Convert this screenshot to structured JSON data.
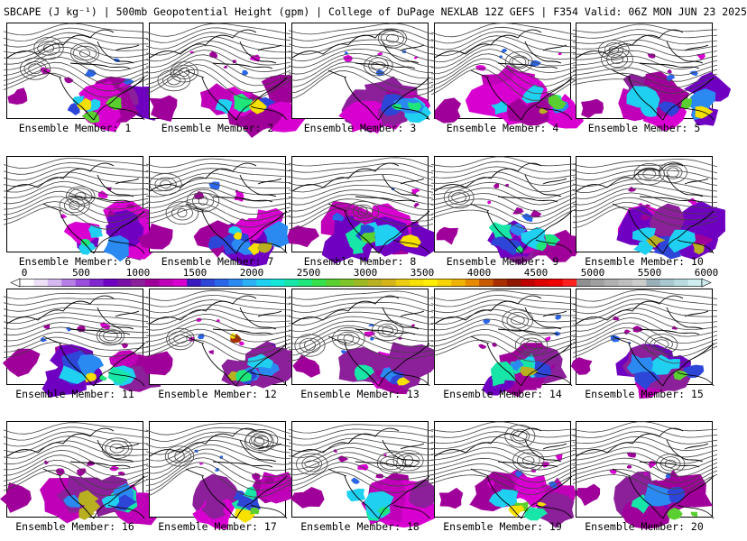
{
  "header": {
    "title": "SBCAPE (J kg⁻¹) | 500mb Geopotential Height (gpm) | College of DuPage NEXLAB 12Z GEFS | F354 Valid: 06Z MON JUN 23 2025"
  },
  "members": [
    {
      "label": "Ensemble Member: 1"
    },
    {
      "label": "Ensemble Member: 2"
    },
    {
      "label": "Ensemble Member: 3"
    },
    {
      "label": "Ensemble Member: 4"
    },
    {
      "label": "Ensemble Member: 5"
    },
    {
      "label": "Ensemble Member: 6"
    },
    {
      "label": "Ensemble Member: 7"
    },
    {
      "label": "Ensemble Member: 8"
    },
    {
      "label": "Ensemble Member: 9"
    },
    {
      "label": "Ensemble Member: 10"
    },
    {
      "label": "Ensemble Member: 11"
    },
    {
      "label": "Ensemble Member: 12"
    },
    {
      "label": "Ensemble Member: 13"
    },
    {
      "label": "Ensemble Member: 14"
    },
    {
      "label": "Ensemble Member: 15"
    },
    {
      "label": "Ensemble Member: 16"
    },
    {
      "label": "Ensemble Member: 17"
    },
    {
      "label": "Ensemble Member: 18"
    },
    {
      "label": "Ensemble Member: 19"
    },
    {
      "label": "Ensemble Member: 20"
    }
  ],
  "colorbar": {
    "ticks": [
      "0",
      "500",
      "1000",
      "1500",
      "2000",
      "2500",
      "3000",
      "3500",
      "4000",
      "4500",
      "5000",
      "5500",
      "6000"
    ],
    "min": 0,
    "max": 6000,
    "colors": [
      "#ffffff",
      "#ede0f7",
      "#d6b8f0",
      "#b57fe6",
      "#9a4fdc",
      "#8126cf",
      "#6f00c2",
      "#7a0fa8",
      "#8c1f9a",
      "#a0009a",
      "#bf00b8",
      "#d800d0",
      "#3a1bbf",
      "#2e46d8",
      "#2a66ea",
      "#2a8af2",
      "#2bb0f4",
      "#20d0f0",
      "#14e6d8",
      "#18e6a8",
      "#1ee67a",
      "#36e04a",
      "#5ad030",
      "#7ec428",
      "#9cb822",
      "#b8b020",
      "#d4b418",
      "#eccc10",
      "#f6e000",
      "#ffee00",
      "#f8d400",
      "#f0b400",
      "#e88a00",
      "#c85a00",
      "#a83000",
      "#901800",
      "#c00000",
      "#dc0000",
      "#f00000",
      "#ff2020",
      "#909090",
      "#a0a0a0",
      "#b0b0b0",
      "#bebebe",
      "#cccccc",
      "#9ab0b8",
      "#a8c8d0",
      "#b8dce0",
      "#cfeef0"
    ]
  }
}
